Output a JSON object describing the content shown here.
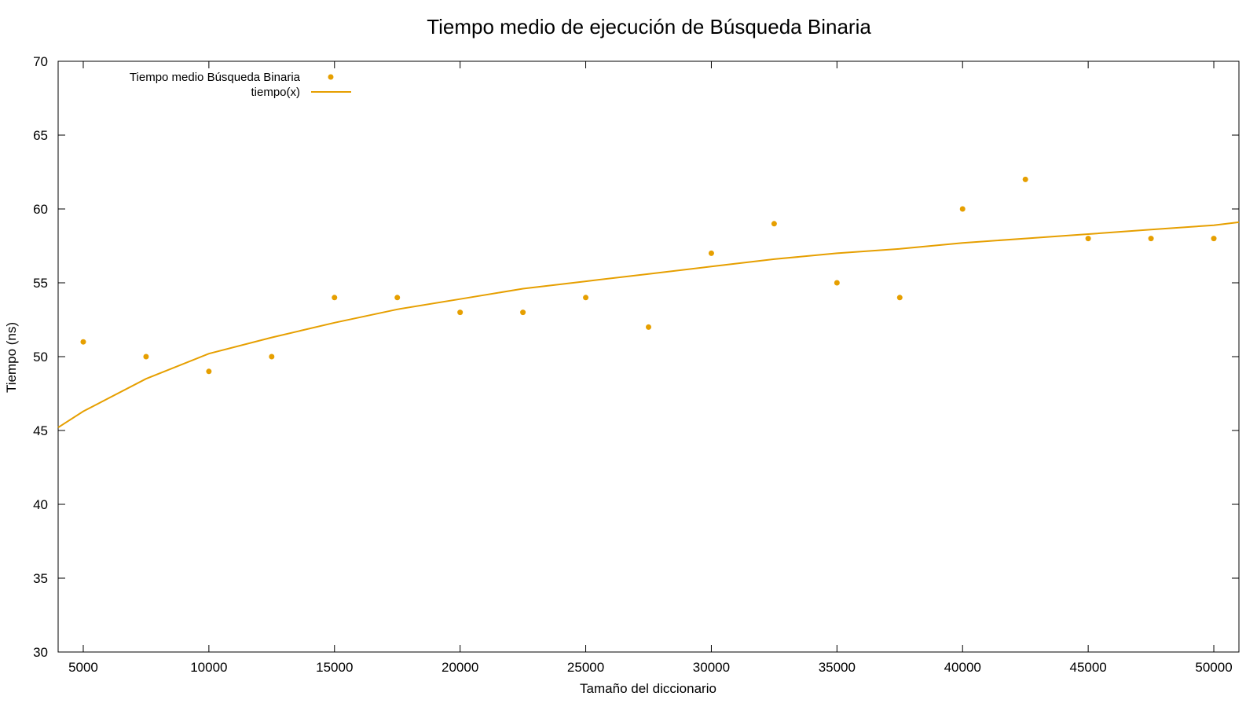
{
  "colors": {
    "series": "#e69f00",
    "axis": "#000000",
    "background": "#ffffff"
  },
  "chart_data": {
    "type": "scatter",
    "title": "Tiempo medio de ejecución de Búsqueda Binaria",
    "xlabel": "Tamaño del diccionario",
    "ylabel": "Tiempo (ns)",
    "xlim": [
      4000,
      51000
    ],
    "ylim": [
      30,
      70
    ],
    "x_ticks": [
      5000,
      10000,
      15000,
      20000,
      25000,
      30000,
      35000,
      40000,
      45000,
      50000
    ],
    "y_ticks": [
      30,
      35,
      40,
      45,
      50,
      55,
      60,
      65,
      70
    ],
    "grid": false,
    "legend_position": "top-left",
    "series": [
      {
        "name": "Tiempo medio Búsqueda Binaria",
        "kind": "points",
        "x": [
          5000,
          7500,
          10000,
          12500,
          15000,
          17500,
          20000,
          22500,
          25000,
          27500,
          30000,
          32500,
          35000,
          37500,
          40000,
          42500,
          45000,
          47500,
          50000
        ],
        "y": [
          51,
          50,
          49,
          50,
          54,
          54,
          53,
          53,
          54,
          52,
          57,
          59,
          55,
          54,
          60,
          62,
          58,
          58,
          58
        ]
      },
      {
        "name": "tiempo(x)",
        "kind": "line",
        "x": [
          4000,
          5000,
          7500,
          10000,
          12500,
          15000,
          17500,
          20000,
          22500,
          25000,
          27500,
          30000,
          32500,
          35000,
          37500,
          40000,
          42500,
          45000,
          47500,
          50000,
          51000
        ],
        "y": [
          45.2,
          46.3,
          48.5,
          50.2,
          51.3,
          52.3,
          53.2,
          53.9,
          54.6,
          55.1,
          55.6,
          56.1,
          56.6,
          57.0,
          57.3,
          57.7,
          58.0,
          58.3,
          58.6,
          58.9,
          59.1
        ]
      }
    ]
  }
}
